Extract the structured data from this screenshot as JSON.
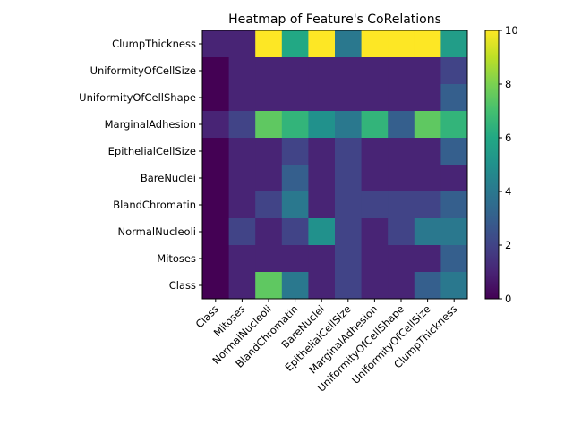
{
  "chart_data": {
    "type": "heatmap",
    "title": "Heatmap of Feature's CoRelations",
    "xlabel": "",
    "ylabel": "",
    "x_categories": [
      "Class",
      "Mitoses",
      "NormalNucleoli",
      "BlandChromatin",
      "BareNuclei",
      "EpithelialCellSize",
      "MarginalAdhesion",
      "UniformityOfCellShape",
      "UniformityOfCellSize",
      "ClumpThickness"
    ],
    "y_categories": [
      "ClumpThickness",
      "UniformityOfCellSize",
      "UniformityOfCellShape",
      "MarginalAdhesion",
      "EpithelialCellSize",
      "BareNuclei",
      "BlandChromatin",
      "NormalNucleoli",
      "Mitoses",
      "Class"
    ],
    "values": [
      [
        1,
        1,
        10,
        6,
        10,
        4,
        10,
        10,
        10,
        5.5
      ],
      [
        0,
        1,
        1,
        1,
        1,
        1,
        1,
        1,
        1,
        2
      ],
      [
        0,
        1,
        1,
        1,
        1,
        1,
        1,
        1,
        1,
        3
      ],
      [
        1,
        2,
        7.5,
        6.5,
        5,
        4,
        6.5,
        3,
        7.5,
        6.5
      ],
      [
        0,
        1,
        1,
        2,
        1,
        2,
        1,
        1,
        1,
        3
      ],
      [
        0,
        1,
        1,
        3,
        1,
        2,
        1,
        1,
        1,
        1
      ],
      [
        0,
        1,
        2,
        4,
        1,
        2,
        2,
        2,
        2,
        3
      ],
      [
        0,
        2,
        1,
        2,
        5,
        2,
        1,
        2,
        4,
        4
      ],
      [
        0,
        1,
        1,
        1,
        1,
        2,
        1,
        1,
        1,
        3
      ],
      [
        0,
        1,
        7.5,
        4,
        1,
        2,
        1,
        1,
        3,
        4
      ]
    ],
    "colorbar": {
      "min": 0,
      "max": 10,
      "ticks": [
        "0",
        "2",
        "4",
        "6",
        "8",
        "10"
      ]
    },
    "colormap": "viridis",
    "grid": false,
    "legend": "colorbar-right"
  }
}
